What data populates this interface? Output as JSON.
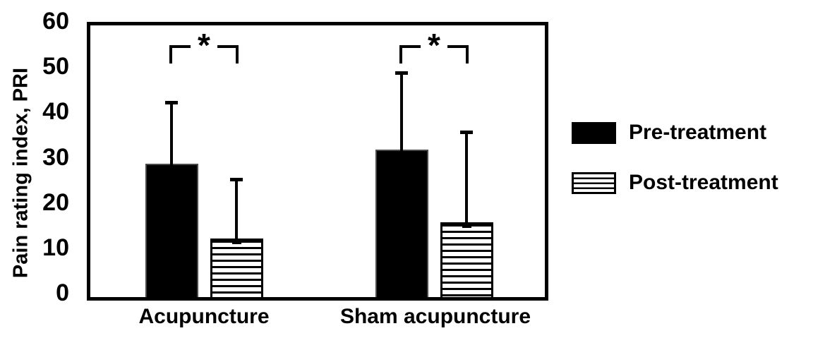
{
  "chart_data": {
    "type": "bar",
    "title": "",
    "ylabel": "Pain rating index, PRI",
    "ylim": [
      0,
      60
    ],
    "ytick_step": 10,
    "yticks": [
      0,
      10,
      20,
      30,
      40,
      50,
      60
    ],
    "categories": [
      "Acupuncture",
      "Sham acupuncture"
    ],
    "series": [
      {
        "name": "Pre-treatment",
        "fill": "solid-black",
        "values": [
          29.5,
          32.5
        ],
        "error_bar_top": [
          43,
          49.5
        ],
        "lower_cap_visible": false
      },
      {
        "name": "Post-treatment",
        "fill": "horizontal-stripes",
        "values": [
          13,
          16.5
        ],
        "error_bar_top": [
          26,
          36.5
        ],
        "lower_cap_visible": true
      }
    ],
    "significance": [
      {
        "category": "Acupuncture",
        "between": [
          "Pre-treatment",
          "Post-treatment"
        ],
        "label": "*"
      },
      {
        "category": "Sham acupuncture",
        "between": [
          "Pre-treatment",
          "Post-treatment"
        ],
        "label": "*"
      }
    ],
    "legend_position": "right",
    "grid": false,
    "colors": {
      "foreground": "#000000",
      "background": "#ffffff",
      "solid_bar_border": "#4a4a4a"
    }
  }
}
